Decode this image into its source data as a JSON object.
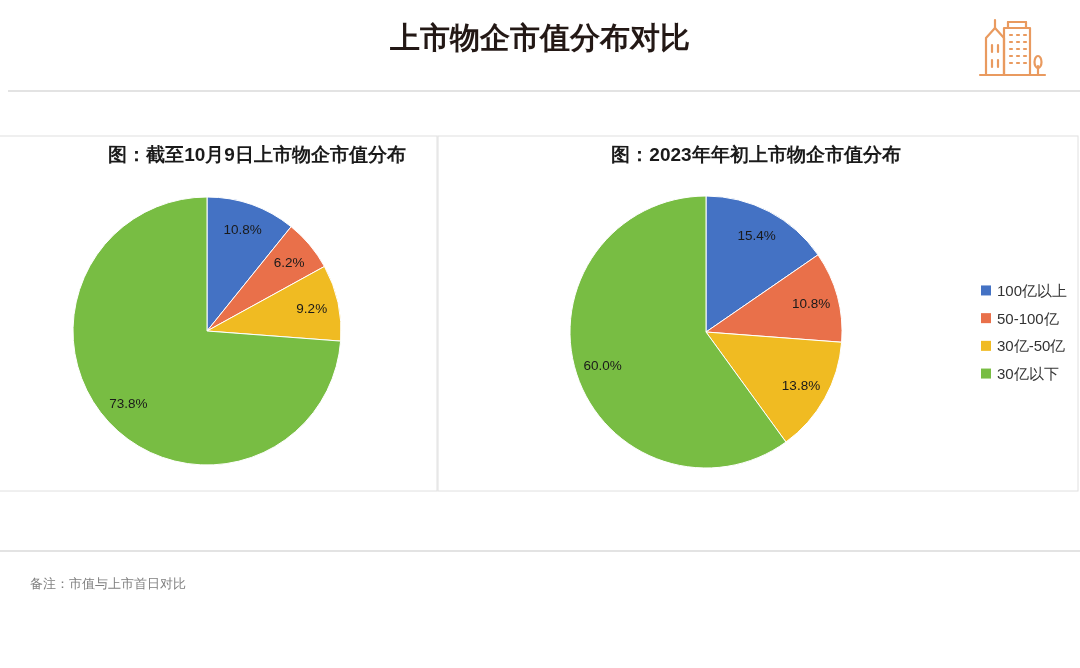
{
  "chart_data": [
    {
      "type": "other",
      "title": "上市物企市值分布对比",
      "annotations": [
        "备注：市值与上市首日对比"
      ]
    },
    {
      "type": "pie",
      "title": "图：截至10月9日上市物企市值分布",
      "categories": [
        null,
        null,
        null,
        null
      ],
      "values": [
        10.8,
        6.2,
        9.2,
        73.8
      ],
      "colors": [
        "#4472c4",
        "#e9704a",
        "#f0bb22",
        "#78bd43"
      ],
      "value_labels": [
        "10.8%",
        "6.2%",
        "9.2%",
        "73.8%"
      ]
    },
    {
      "type": "pie",
      "title": "图：2023年年初上市物企市值分布",
      "categories": [
        "100亿以上",
        "50-100亿",
        "30亿-50亿",
        "30亿以下"
      ],
      "values": [
        15.4,
        10.8,
        13.8,
        60.0
      ],
      "colors": [
        "#4472c4",
        "#e9704a",
        "#f0bb22",
        "#78bd43"
      ],
      "value_labels": [
        "15.4%",
        "10.8%",
        "13.8%",
        "60.0%"
      ],
      "legend": "right"
    }
  ]
}
